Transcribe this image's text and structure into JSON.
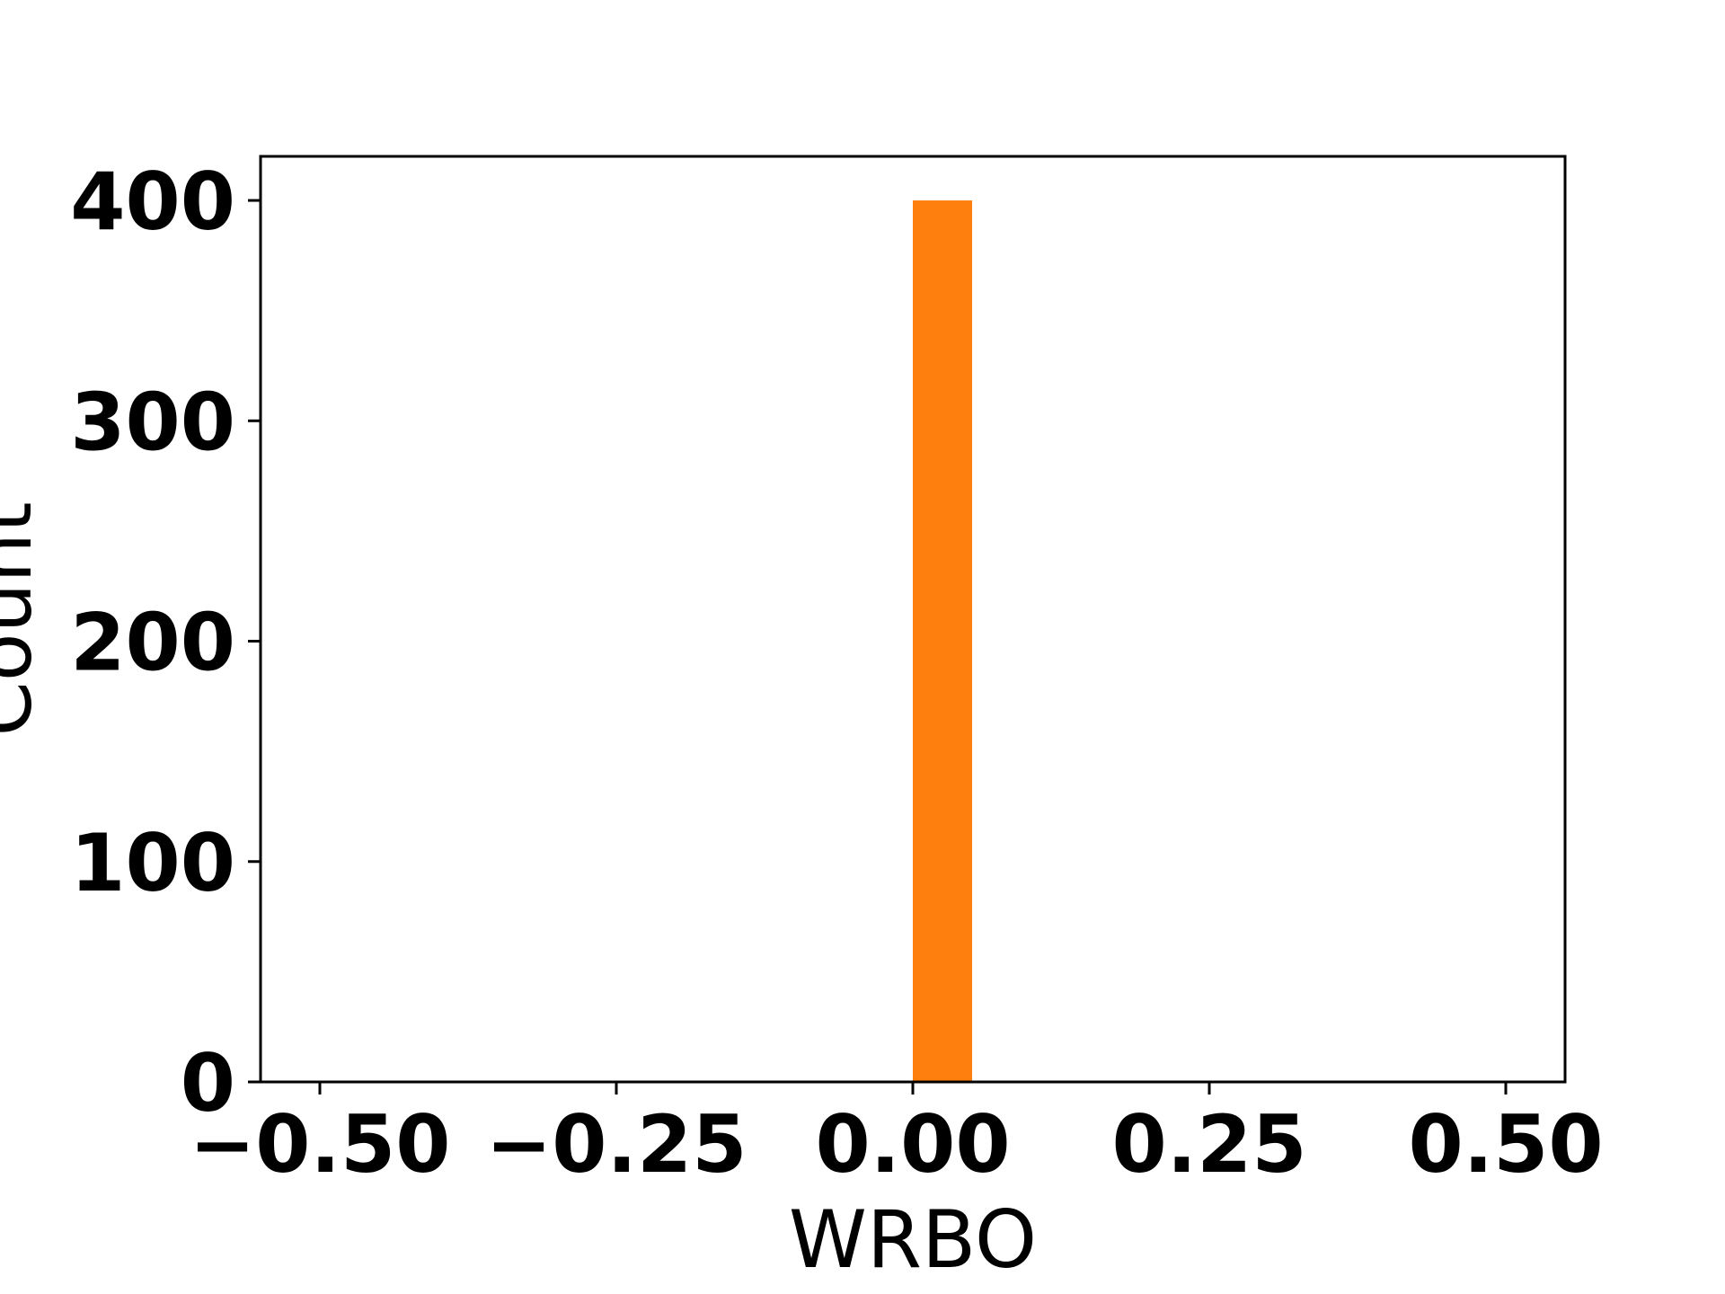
{
  "chart_data": {
    "type": "bar",
    "title": "",
    "xlabel": "WRBO",
    "ylabel": "Count",
    "xlim": [
      -0.55,
      0.55
    ],
    "ylim": [
      0,
      420
    ],
    "xticks": [
      -0.5,
      -0.25,
      0.0,
      0.25,
      0.5
    ],
    "xtick_labels": [
      "−0.50",
      "−0.25",
      "0.00",
      "0.25",
      "0.50"
    ],
    "yticks": [
      0,
      100,
      200,
      300,
      400
    ],
    "ytick_labels": [
      "0",
      "100",
      "200",
      "300",
      "400"
    ],
    "bins": [
      {
        "x_start": 0.0,
        "x_end": 0.05,
        "value": 400
      }
    ],
    "colors": {
      "bar": "#ff7f0e",
      "axes": "#000000"
    },
    "grid": false,
    "legend": "none"
  }
}
